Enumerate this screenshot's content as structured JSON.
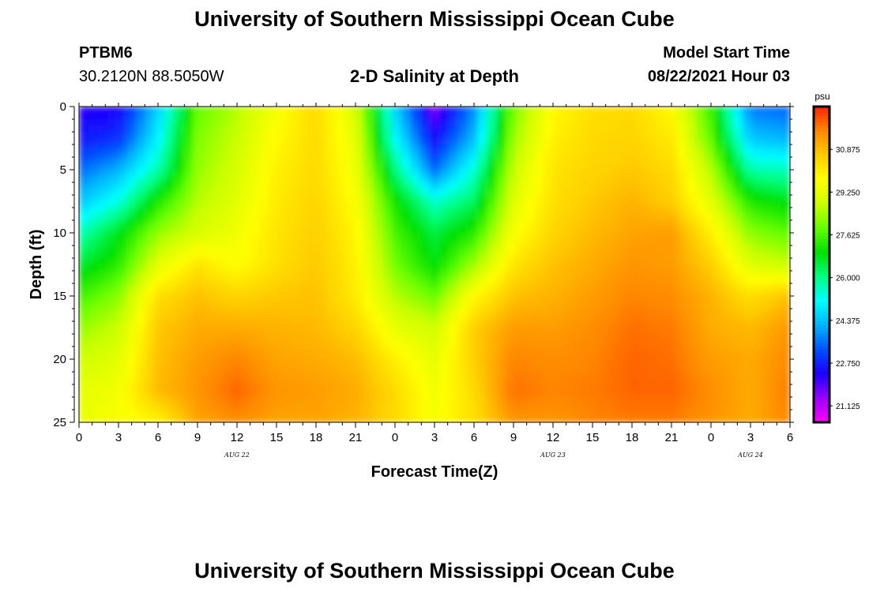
{
  "header": {
    "title": "University of Southern Mississippi Ocean Cube",
    "station_id": "PTBM6",
    "coordinates": "30.2120N  88.5050W",
    "plot_title": "2-D Salinity at Depth",
    "start_label": "Model Start Time",
    "start_value": "08/22/2021 Hour 03"
  },
  "footer": {
    "title": "University of Southern Mississippi Ocean Cube"
  },
  "chart_data": {
    "type": "heatmap",
    "title": "2-D Salinity at Depth",
    "xlabel": "Forecast Time(Z)",
    "ylabel": "Depth (ft)",
    "x_range_hours": [
      0,
      54
    ],
    "x_tick_labels": [
      "0",
      "3",
      "6",
      "9",
      "12",
      "15",
      "18",
      "21",
      "0",
      "3",
      "6",
      "9",
      "12",
      "15",
      "18",
      "21",
      "0",
      "3",
      "6"
    ],
    "date_labels": [
      {
        "label": "AUG  22",
        "hour": 12
      },
      {
        "label": "AUG  23",
        "hour": 36
      },
      {
        "label": "AUG  24",
        "hour": 51
      }
    ],
    "ylim": [
      0,
      25
    ],
    "y_ticks": [
      0,
      5,
      10,
      15,
      20,
      25
    ],
    "colorbar": {
      "unit": "psu",
      "range": [
        20.5,
        32.5
      ],
      "tick_labels": [
        "30.875",
        "29.250",
        "27.625",
        "26.000",
        "24.375",
        "22.750",
        "21.125"
      ],
      "colors": [
        "#ff00ff",
        "#9900ff",
        "#1a00ff",
        "#0050ff",
        "#00b4ff",
        "#00ffff",
        "#00ff80",
        "#00e000",
        "#66ff00",
        "#ccff00",
        "#ffff00",
        "#ffcc00",
        "#ff8800",
        "#ff2200"
      ]
    },
    "depths_ft": [
      0,
      2.5,
      5,
      7.5,
      10,
      12.5,
      15,
      17.5,
      20,
      22.5,
      25
    ],
    "hours": [
      0,
      3,
      6,
      9,
      12,
      15,
      18,
      21,
      24,
      27,
      30,
      33,
      36,
      39,
      42,
      45,
      48,
      51,
      54
    ],
    "values": [
      [
        22.2,
        22.3,
        24.5,
        27.8,
        28.6,
        29.6,
        30.4,
        29.0,
        24.6,
        21.6,
        23.8,
        28.0,
        29.8,
        30.3,
        30.4,
        29.8,
        27.4,
        23.6,
        23.4
      ],
      [
        22.6,
        22.9,
        25.0,
        28.1,
        28.8,
        29.8,
        30.4,
        29.3,
        25.1,
        22.5,
        24.3,
        28.4,
        30.0,
        30.4,
        30.5,
        30.1,
        27.8,
        24.4,
        24.2
      ],
      [
        23.5,
        24.2,
        25.7,
        28.3,
        29.0,
        30.0,
        30.4,
        29.5,
        26.1,
        23.5,
        25.4,
        28.8,
        30.2,
        30.5,
        30.7,
        30.4,
        28.6,
        25.7,
        25.6
      ],
      [
        24.4,
        25.3,
        27.2,
        28.6,
        29.2,
        30.1,
        30.5,
        29.7,
        27.1,
        25.5,
        26.3,
        29.2,
        30.3,
        30.7,
        31.0,
        30.6,
        29.2,
        27.2,
        26.8
      ],
      [
        25.6,
        26.8,
        28.3,
        29.0,
        29.5,
        30.2,
        30.6,
        29.9,
        27.6,
        26.5,
        27.3,
        29.6,
        30.5,
        30.9,
        31.2,
        31.3,
        30.0,
        28.2,
        27.8
      ],
      [
        26.6,
        27.3,
        29.2,
        30.2,
        29.7,
        30.3,
        30.7,
        30.0,
        28.0,
        26.9,
        28.4,
        30.2,
        30.8,
        31.1,
        31.4,
        31.3,
        30.6,
        29.1,
        28.8
      ],
      [
        27.5,
        28.2,
        30.3,
        30.8,
        30.5,
        30.7,
        30.8,
        30.1,
        28.6,
        27.9,
        29.8,
        30.8,
        31.0,
        31.3,
        31.6,
        31.5,
        31.0,
        30.3,
        30.8
      ],
      [
        28.3,
        28.8,
        30.7,
        31.1,
        31.1,
        31.0,
        30.9,
        30.5,
        29.3,
        28.9,
        30.6,
        31.3,
        31.3,
        31.5,
        31.8,
        31.7,
        31.1,
        30.9,
        31.4
      ],
      [
        28.9,
        29.2,
        30.8,
        31.3,
        31.6,
        31.2,
        31.1,
        30.9,
        30.0,
        29.3,
        30.6,
        31.6,
        31.5,
        31.6,
        31.9,
        31.8,
        31.3,
        31.1,
        31.6
      ],
      [
        29.3,
        29.5,
        30.9,
        31.4,
        31.9,
        31.4,
        31.3,
        31.1,
        30.4,
        29.5,
        30.4,
        31.8,
        31.6,
        31.7,
        31.9,
        31.9,
        31.5,
        31.1,
        31.7
      ],
      [
        29.4,
        29.6,
        29.9,
        31.2,
        31.5,
        31.2,
        31.2,
        31.0,
        30.4,
        29.6,
        30.3,
        31.4,
        31.4,
        31.6,
        31.7,
        31.7,
        31.4,
        31.1,
        31.6
      ]
    ]
  }
}
